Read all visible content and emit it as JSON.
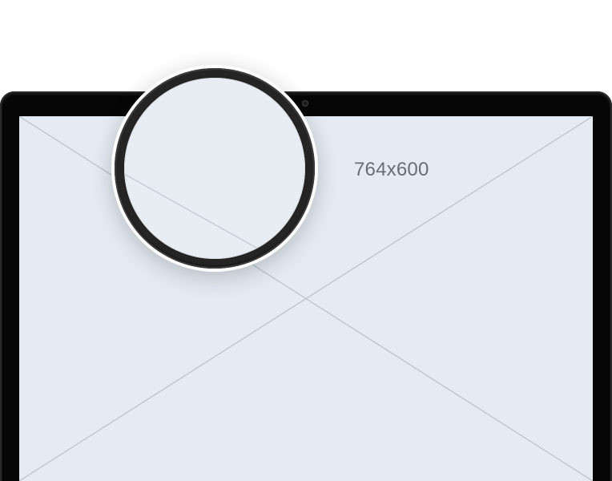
{
  "mockup": {
    "size_label": "764x600",
    "colors": {
      "page_background": "#ffffff",
      "device_frame": "#060606",
      "screen_background": "#e4ebf2",
      "placeholder_line": "#bcc4cc",
      "label_text": "#666f78",
      "magnifier_ring": "#242424"
    },
    "icons": {
      "camera": "camera-icon",
      "magnifier": "magnifier-icon"
    }
  }
}
